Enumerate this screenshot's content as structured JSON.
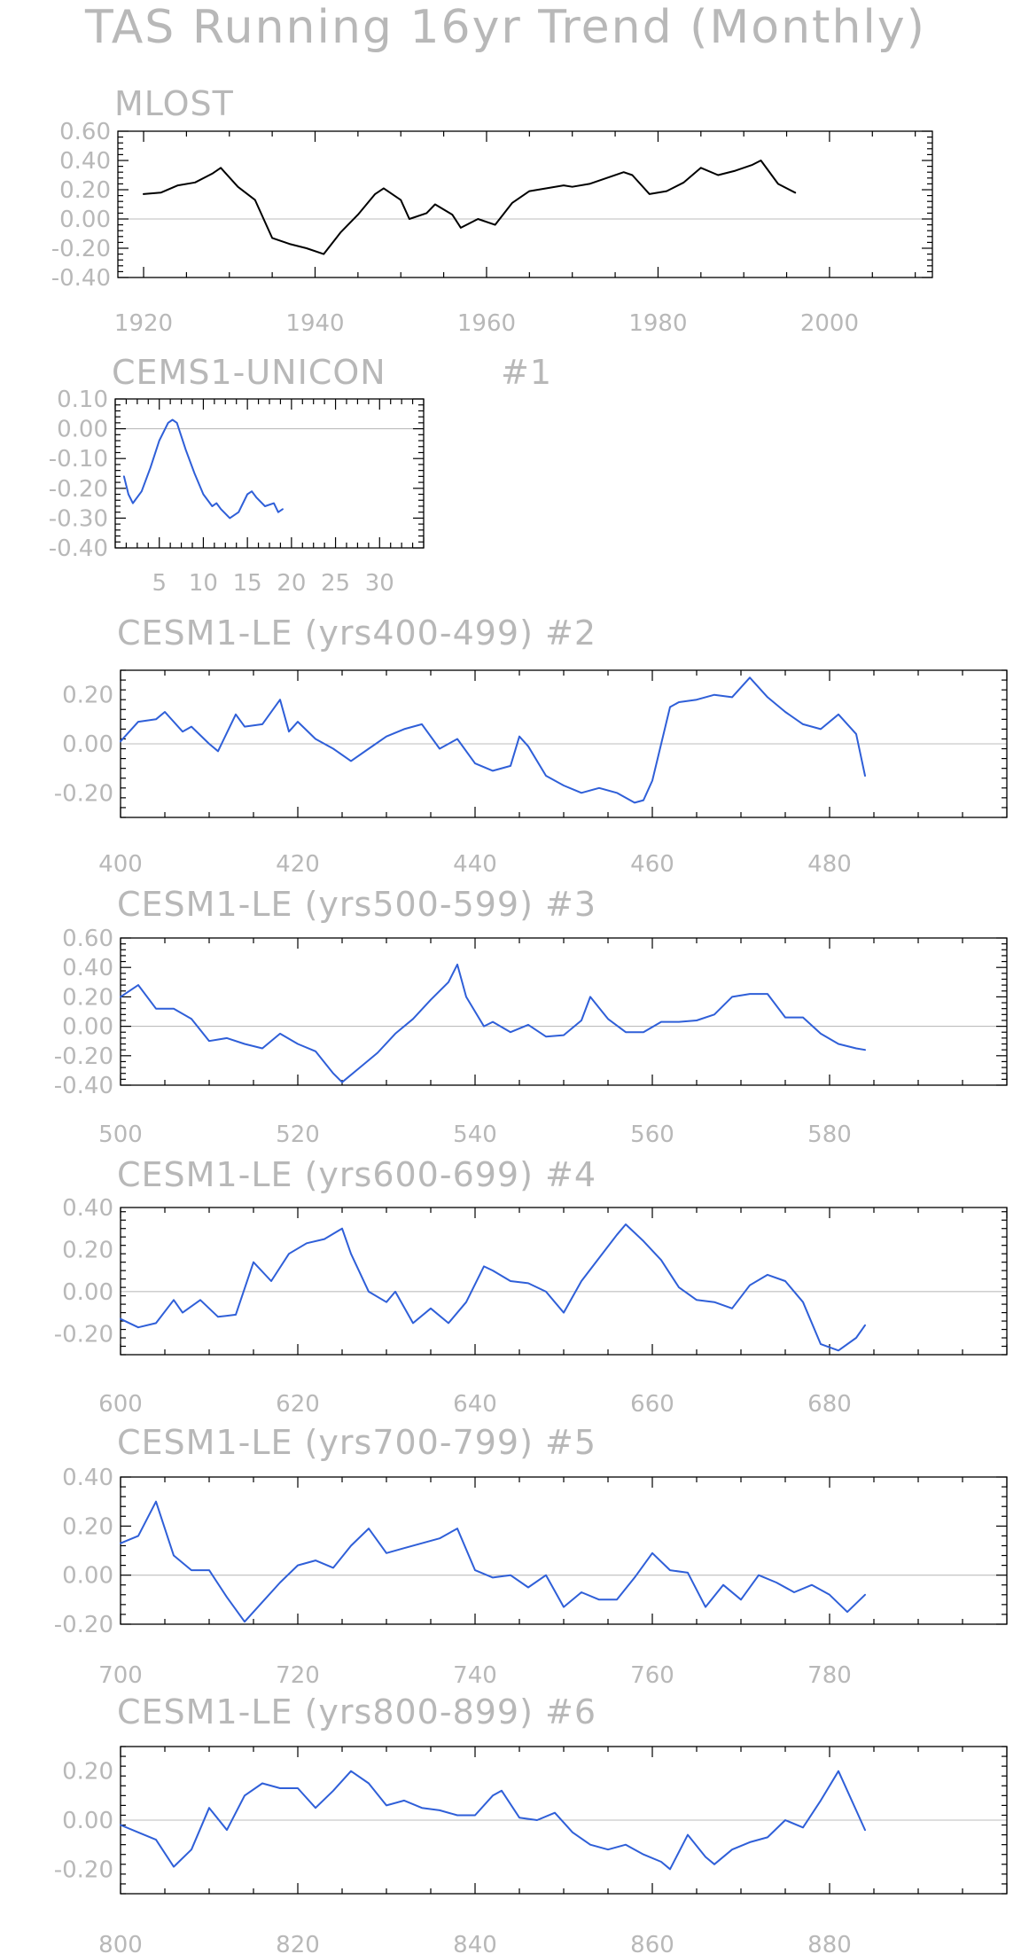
{
  "figure": {
    "title": "TAS Running 16yr Trend (Monthly)"
  },
  "colors": {
    "obs_line": "#000000",
    "model_line": "#2f5fd8",
    "zero_line": "#bdbdbd"
  },
  "chart_data": [
    {
      "type": "line",
      "title": "MLOST",
      "xlim": [
        1917,
        2012
      ],
      "ylim": [
        -0.4,
        0.6
      ],
      "xticks": [
        1920,
        1940,
        1960,
        1980,
        2000
      ],
      "xtick_labels": [
        "1920",
        "1940",
        "1960",
        "1980",
        "2000"
      ],
      "yticks": [
        -0.4,
        -0.2,
        0.0,
        0.2,
        0.4,
        0.6
      ],
      "ytick_labels": [
        "-0.40",
        "-0.20",
        "0.00",
        "0.20",
        "0.40",
        "0.60"
      ],
      "color": "#000000",
      "series": [
        {
          "x": [
            1920,
            1922,
            1924,
            1926,
            1928,
            1929,
            1931,
            1933,
            1935,
            1937,
            1939,
            1941,
            1943,
            1945,
            1947,
            1948,
            1950,
            1951,
            1953,
            1954,
            1956,
            1957,
            1959,
            1961,
            1963,
            1965,
            1967,
            1969,
            1970,
            1972,
            1974,
            1976,
            1977,
            1979,
            1981,
            1983,
            1985,
            1987,
            1989,
            1991,
            1992,
            1994,
            1996
          ],
          "y": [
            0.17,
            0.18,
            0.23,
            0.25,
            0.31,
            0.35,
            0.22,
            0.13,
            -0.13,
            -0.17,
            -0.2,
            -0.24,
            -0.09,
            0.03,
            0.17,
            0.21,
            0.13,
            0.0,
            0.04,
            0.1,
            0.03,
            -0.06,
            0.0,
            -0.04,
            0.11,
            0.19,
            0.21,
            0.23,
            0.22,
            0.24,
            0.28,
            0.32,
            0.3,
            0.17,
            0.19,
            0.25,
            0.35,
            0.3,
            0.33,
            0.37,
            0.4,
            0.24,
            0.18
          ]
        }
      ]
    },
    {
      "type": "line",
      "title": "CEMS1-UNICON",
      "subtitle": "#1",
      "xlim": [
        0,
        35
      ],
      "ylim": [
        -0.4,
        0.1
      ],
      "xticks": [
        5,
        10,
        15,
        20,
        25,
        30
      ],
      "xtick_labels": [
        "5",
        "10",
        "15",
        "20",
        "25",
        "30"
      ],
      "yticks": [
        -0.4,
        -0.3,
        -0.2,
        -0.1,
        0.0,
        0.1
      ],
      "ytick_labels": [
        "-0.40",
        "-0.30",
        "-0.20",
        "-0.10",
        "0.00",
        "0.10"
      ],
      "color": "#2f5fd8",
      "series": [
        {
          "x": [
            1,
            1.5,
            2,
            3,
            4,
            5,
            6,
            6.5,
            7,
            8,
            9,
            10,
            11,
            11.5,
            12,
            13,
            14,
            15,
            15.5,
            16,
            17,
            18,
            18.5,
            19
          ],
          "y": [
            -0.16,
            -0.22,
            -0.25,
            -0.21,
            -0.13,
            -0.04,
            0.02,
            0.03,
            0.02,
            -0.07,
            -0.15,
            -0.22,
            -0.26,
            -0.25,
            -0.27,
            -0.3,
            -0.28,
            -0.22,
            -0.21,
            -0.23,
            -0.26,
            -0.25,
            -0.28,
            -0.27
          ]
        }
      ]
    },
    {
      "type": "line",
      "title": "CESM1-LE (yrs400-499) #2",
      "xlim": [
        400,
        500
      ],
      "ylim": [
        -0.3,
        0.3
      ],
      "xticks": [
        400,
        420,
        440,
        460,
        480
      ],
      "xtick_labels": [
        "400",
        "420",
        "440",
        "460",
        "480"
      ],
      "yticks": [
        -0.2,
        0.0,
        0.2
      ],
      "ytick_labels": [
        "-0.20",
        "0.00",
        "0.20"
      ],
      "color": "#2f5fd8",
      "series": [
        {
          "x": [
            400,
            402,
            404,
            405,
            407,
            408,
            410,
            411,
            413,
            414,
            416,
            418,
            419,
            420,
            422,
            424,
            426,
            428,
            430,
            432,
            434,
            436,
            438,
            440,
            442,
            444,
            445,
            446,
            448,
            450,
            452,
            454,
            456,
            458,
            459,
            460,
            462,
            463,
            465,
            467,
            469,
            471,
            473,
            475,
            477,
            479,
            481,
            483,
            484
          ],
          "y": [
            0.01,
            0.09,
            0.1,
            0.13,
            0.05,
            0.07,
            0.0,
            -0.03,
            0.12,
            0.07,
            0.08,
            0.18,
            0.05,
            0.09,
            0.02,
            -0.02,
            -0.07,
            -0.02,
            0.03,
            0.06,
            0.08,
            -0.02,
            0.02,
            -0.08,
            -0.11,
            -0.09,
            0.03,
            -0.01,
            -0.13,
            -0.17,
            -0.2,
            -0.18,
            -0.2,
            -0.24,
            -0.23,
            -0.15,
            0.15,
            0.17,
            0.18,
            0.2,
            0.19,
            0.27,
            0.19,
            0.13,
            0.08,
            0.06,
            0.12,
            0.04,
            -0.13
          ]
        }
      ]
    },
    {
      "type": "line",
      "title": "CESM1-LE (yrs500-599) #3",
      "xlim": [
        500,
        600
      ],
      "ylim": [
        -0.4,
        0.6
      ],
      "xticks": [
        500,
        520,
        540,
        560,
        580
      ],
      "xtick_labels": [
        "500",
        "520",
        "540",
        "560",
        "580"
      ],
      "yticks": [
        -0.4,
        -0.2,
        0.0,
        0.2,
        0.4,
        0.6
      ],
      "ytick_labels": [
        "-0.40",
        "-0.20",
        "0.00",
        "0.20",
        "0.40",
        "0.60"
      ],
      "color": "#2f5fd8",
      "series": [
        {
          "x": [
            500,
            502,
            504,
            506,
            508,
            510,
            512,
            514,
            516,
            518,
            520,
            522,
            524,
            525,
            527,
            529,
            531,
            533,
            535,
            537,
            538,
            539,
            541,
            542,
            544,
            546,
            548,
            550,
            552,
            553,
            555,
            557,
            559,
            561,
            563,
            565,
            567,
            569,
            571,
            573,
            575,
            577,
            579,
            581,
            583,
            584
          ],
          "y": [
            0.2,
            0.28,
            0.12,
            0.12,
            0.05,
            -0.1,
            -0.08,
            -0.12,
            -0.15,
            -0.05,
            -0.12,
            -0.17,
            -0.32,
            -0.38,
            -0.28,
            -0.18,
            -0.05,
            0.05,
            0.18,
            0.3,
            0.42,
            0.2,
            0.0,
            0.03,
            -0.04,
            0.01,
            -0.07,
            -0.06,
            0.04,
            0.2,
            0.05,
            -0.04,
            -0.04,
            0.03,
            0.03,
            0.04,
            0.08,
            0.2,
            0.22,
            0.22,
            0.06,
            0.06,
            -0.05,
            -0.12,
            -0.15,
            -0.16
          ]
        }
      ]
    },
    {
      "type": "line",
      "title": "CESM1-LE (yrs600-699) #4",
      "xlim": [
        600,
        700
      ],
      "ylim": [
        -0.3,
        0.4
      ],
      "xticks": [
        600,
        620,
        640,
        660,
        680
      ],
      "xtick_labels": [
        "600",
        "620",
        "640",
        "660",
        "680"
      ],
      "yticks": [
        -0.2,
        0.0,
        0.2,
        0.4
      ],
      "ytick_labels": [
        "-0.20",
        "0.00",
        "0.20",
        "0.40"
      ],
      "color": "#2f5fd8",
      "series": [
        {
          "x": [
            600,
            602,
            604,
            606,
            607,
            609,
            611,
            613,
            615,
            617,
            619,
            621,
            623,
            625,
            626,
            628,
            630,
            631,
            633,
            635,
            637,
            639,
            641,
            642,
            644,
            646,
            648,
            650,
            652,
            654,
            656,
            657,
            659,
            661,
            663,
            665,
            667,
            669,
            671,
            673,
            675,
            677,
            679,
            681,
            683,
            684
          ],
          "y": [
            -0.13,
            -0.17,
            -0.15,
            -0.04,
            -0.1,
            -0.04,
            -0.12,
            -0.11,
            0.14,
            0.05,
            0.18,
            0.23,
            0.25,
            0.3,
            0.18,
            0.0,
            -0.05,
            0.0,
            -0.15,
            -0.08,
            -0.15,
            -0.05,
            0.12,
            0.1,
            0.05,
            0.04,
            0.0,
            -0.1,
            0.05,
            0.16,
            0.27,
            0.32,
            0.24,
            0.15,
            0.02,
            -0.04,
            -0.05,
            -0.08,
            0.03,
            0.08,
            0.05,
            -0.05,
            -0.25,
            -0.28,
            -0.22,
            -0.16
          ]
        }
      ]
    },
    {
      "type": "line",
      "title": "CESM1-LE (yrs700-799) #5",
      "xlim": [
        700,
        800
      ],
      "ylim": [
        -0.2,
        0.4
      ],
      "xticks": [
        700,
        720,
        740,
        760,
        780
      ],
      "xtick_labels": [
        "700",
        "720",
        "740",
        "760",
        "780"
      ],
      "yticks": [
        -0.2,
        0.0,
        0.2,
        0.4
      ],
      "ytick_labels": [
        "-0.20",
        "0.00",
        "0.20",
        "0.40"
      ],
      "color": "#2f5fd8",
      "series": [
        {
          "x": [
            700,
            702,
            704,
            706,
            708,
            710,
            712,
            714,
            716,
            718,
            720,
            722,
            724,
            726,
            728,
            730,
            732,
            734,
            736,
            738,
            740,
            742,
            744,
            746,
            748,
            750,
            752,
            754,
            756,
            758,
            760,
            762,
            764,
            766,
            768,
            770,
            772,
            774,
            776,
            778,
            780,
            782,
            784
          ],
          "y": [
            0.13,
            0.16,
            0.3,
            0.08,
            0.02,
            0.02,
            -0.09,
            -0.19,
            -0.11,
            -0.03,
            0.04,
            0.06,
            0.03,
            0.12,
            0.19,
            0.09,
            0.11,
            0.13,
            0.15,
            0.19,
            0.02,
            -0.01,
            0.0,
            -0.05,
            0.0,
            -0.13,
            -0.07,
            -0.1,
            -0.1,
            -0.01,
            0.09,
            0.02,
            0.01,
            -0.13,
            -0.04,
            -0.1,
            0.0,
            -0.03,
            -0.07,
            -0.04,
            -0.08,
            -0.15,
            -0.08
          ]
        }
      ]
    },
    {
      "type": "line",
      "title": "CESM1-LE (yrs800-899) #6",
      "xlim": [
        800,
        900
      ],
      "ylim": [
        -0.3,
        0.3
      ],
      "xticks": [
        800,
        820,
        840,
        860,
        880
      ],
      "xtick_labels": [
        "800",
        "820",
        "840",
        "860",
        "880"
      ],
      "yticks": [
        -0.2,
        0.0,
        0.2
      ],
      "ytick_labels": [
        "-0.20",
        "0.00",
        "0.20"
      ],
      "color": "#2f5fd8",
      "series": [
        {
          "x": [
            800,
            802,
            804,
            806,
            808,
            810,
            812,
            814,
            816,
            818,
            820,
            822,
            824,
            826,
            828,
            830,
            832,
            834,
            836,
            838,
            840,
            842,
            843,
            845,
            847,
            849,
            851,
            853,
            855,
            857,
            859,
            861,
            862,
            864,
            866,
            867,
            869,
            871,
            873,
            875,
            877,
            879,
            881,
            883,
            884
          ],
          "y": [
            -0.02,
            -0.05,
            -0.08,
            -0.19,
            -0.12,
            0.05,
            -0.04,
            0.1,
            0.15,
            0.13,
            0.13,
            0.05,
            0.12,
            0.2,
            0.15,
            0.06,
            0.08,
            0.05,
            0.04,
            0.02,
            0.02,
            0.1,
            0.12,
            0.01,
            0.0,
            0.03,
            -0.05,
            -0.1,
            -0.12,
            -0.1,
            -0.14,
            -0.17,
            -0.2,
            -0.06,
            -0.15,
            -0.18,
            -0.12,
            -0.09,
            -0.07,
            0.0,
            -0.03,
            0.08,
            0.2,
            0.04,
            -0.04
          ]
        }
      ]
    }
  ]
}
